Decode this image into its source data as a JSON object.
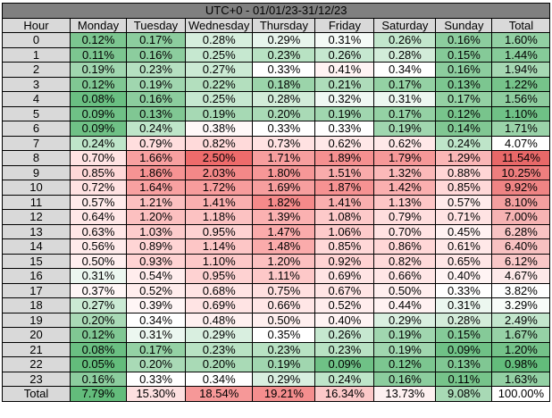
{
  "title": "UTC+0 - 01/01/23-31/12/23",
  "headers": [
    "Hour",
    "Monday",
    "Tuesday",
    "Wednesday",
    "Thursday",
    "Friday",
    "Saturday",
    "Sunday",
    "Total"
  ],
  "rows": [
    {
      "hour": "0",
      "values": [
        "0.12%",
        "0.17%",
        "0.28%",
        "0.29%",
        "0.31%",
        "0.26%",
        "0.16%",
        "1.60%"
      ],
      "colors": [
        "#7cc690",
        "#8ccd9e",
        "#d6eedd",
        "#e7f5ec",
        "#f4faf6",
        "#c2e6cc",
        "#8ccd9e",
        "#92d0a3"
      ]
    },
    {
      "hour": "1",
      "values": [
        "0.11%",
        "0.16%",
        "0.25%",
        "0.23%",
        "0.26%",
        "0.28%",
        "0.15%",
        "1.44%"
      ],
      "colors": [
        "#7cc690",
        "#8ccd9e",
        "#c6e8d0",
        "#b8e2c3",
        "#c6e8d0",
        "#d2ecd9",
        "#85ca98",
        "#86cb99"
      ]
    },
    {
      "hour": "2",
      "values": [
        "0.19%",
        "0.23%",
        "0.27%",
        "0.33%",
        "0.41%",
        "0.34%",
        "0.16%",
        "1.94%"
      ],
      "colors": [
        "#a0d6af",
        "#b5e0c1",
        "#cbead4",
        "#ffffff",
        "#fff3f3",
        "#ffffff",
        "#8ccd9e",
        "#a6d8b3"
      ]
    },
    {
      "hour": "3",
      "values": [
        "0.12%",
        "0.19%",
        "0.22%",
        "0.18%",
        "0.21%",
        "0.17%",
        "0.13%",
        "1.22%"
      ],
      "colors": [
        "#80c793",
        "#a0d6af",
        "#b3dfbe",
        "#9bd4aa",
        "#aedcba",
        "#94d1a4",
        "#7cc690",
        "#76c38a"
      ]
    },
    {
      "hour": "4",
      "values": [
        "0.08%",
        "0.16%",
        "0.25%",
        "0.28%",
        "0.32%",
        "0.31%",
        "0.17%",
        "1.56%"
      ],
      "colors": [
        "#6abf82",
        "#8ccd9e",
        "#c6e8d0",
        "#d2ecd9",
        "#f0f8f3",
        "#ecf7f0",
        "#94d1a4",
        "#8ecd9f"
      ]
    },
    {
      "hour": "5",
      "values": [
        "0.09%",
        "0.13%",
        "0.19%",
        "0.20%",
        "0.19%",
        "0.17%",
        "0.12%",
        "1.10%"
      ],
      "colors": [
        "#6fc186",
        "#80c793",
        "#a6d9b4",
        "#a9dab6",
        "#a0d6af",
        "#94d1a4",
        "#78c48c",
        "#6fc186"
      ]
    },
    {
      "hour": "6",
      "values": [
        "0.09%",
        "0.24%",
        "0.38%",
        "0.33%",
        "0.33%",
        "0.19%",
        "0.14%",
        "1.71%"
      ],
      "colors": [
        "#6fc186",
        "#bee5c9",
        "#fff8f8",
        "#ffffff",
        "#ffffff",
        "#a0d6af",
        "#80c793",
        "#9ad3a9"
      ]
    },
    {
      "hour": "7",
      "values": [
        "0.24%",
        "0.79%",
        "0.82%",
        "0.73%",
        "0.62%",
        "0.62%",
        "0.24%",
        "4.07%"
      ],
      "colors": [
        "#bee5c9",
        "#ffdede",
        "#ffdada",
        "#ffe2e2",
        "#ffe8e8",
        "#ffe8e8",
        "#bee5c9",
        "#ffffff"
      ]
    },
    {
      "hour": "8",
      "values": [
        "0.70%",
        "1.66%",
        "2.50%",
        "1.71%",
        "1.89%",
        "1.79%",
        "1.29%",
        "11.54%"
      ],
      "colors": [
        "#ffe3e3",
        "#f8a0a0",
        "#ee6b6b",
        "#f79e9e",
        "#f59090",
        "#f69898",
        "#fab6b6",
        "#e86868"
      ]
    },
    {
      "hour": "9",
      "values": [
        "0.85%",
        "1.86%",
        "2.03%",
        "1.80%",
        "1.51%",
        "1.32%",
        "0.88%",
        "10.25%"
      ],
      "colors": [
        "#ffd8d8",
        "#f69393",
        "#f48888",
        "#f69797",
        "#f9abab",
        "#fbb9b9",
        "#ffd6d6",
        "#ee7e7e"
      ]
    },
    {
      "hour": "10",
      "values": [
        "0.72%",
        "1.64%",
        "1.72%",
        "1.69%",
        "1.87%",
        "1.42%",
        "0.85%",
        "9.92%"
      ],
      "colors": [
        "#ffe2e2",
        "#f8a1a1",
        "#f79c9c",
        "#f79e9e",
        "#f69292",
        "#faafaf",
        "#ffd8d8",
        "#ef8484"
      ]
    },
    {
      "hour": "11",
      "values": [
        "0.57%",
        "1.21%",
        "1.41%",
        "1.82%",
        "1.41%",
        "1.13%",
        "0.57%",
        "8.10%"
      ],
      "colors": [
        "#ffebeb",
        "#fcc0c0",
        "#faafaf",
        "#f58a8a",
        "#faafaf",
        "#fdc6c6",
        "#ffebeb",
        "#f39f9f"
      ]
    },
    {
      "hour": "12",
      "values": [
        "0.64%",
        "1.20%",
        "1.18%",
        "1.39%",
        "1.08%",
        "0.79%",
        "0.71%",
        "7.00%"
      ],
      "colors": [
        "#ffe7e7",
        "#fcc0c0",
        "#fcc2c2",
        "#fbb1b1",
        "#fdcaca",
        "#ffdede",
        "#ffe3e3",
        "#f6b3b3"
      ]
    },
    {
      "hour": "13",
      "values": [
        "0.63%",
        "1.03%",
        "0.95%",
        "1.47%",
        "1.06%",
        "0.70%",
        "0.45%",
        "6.28%"
      ],
      "colors": [
        "#ffe7e7",
        "#fdcccc",
        "#fed2d2",
        "#faabab",
        "#fdcbcb",
        "#ffe3e3",
        "#fff2f2",
        "#f8c4c4"
      ]
    },
    {
      "hour": "14",
      "values": [
        "0.56%",
        "0.89%",
        "1.14%",
        "1.48%",
        "0.85%",
        "0.86%",
        "0.61%",
        "6.40%"
      ],
      "colors": [
        "#ffebeb",
        "#ffd5d5",
        "#fdc6c6",
        "#faabab",
        "#ffd8d8",
        "#ffd7d7",
        "#ffe8e8",
        "#f8c1c1"
      ]
    },
    {
      "hour": "15",
      "values": [
        "0.50%",
        "0.93%",
        "1.10%",
        "1.20%",
        "0.92%",
        "0.82%",
        "0.65%",
        "6.12%"
      ],
      "colors": [
        "#ffefef",
        "#ffd3d3",
        "#fdc8c8",
        "#fcc0c0",
        "#ffd3d3",
        "#ffdada",
        "#ffe6e6",
        "#f9c7c7"
      ]
    },
    {
      "hour": "16",
      "values": [
        "0.31%",
        "0.54%",
        "0.95%",
        "1.11%",
        "0.69%",
        "0.66%",
        "0.40%",
        "4.67%"
      ],
      "colors": [
        "#ecf7f0",
        "#ffeded",
        "#fed2d2",
        "#fdc8c8",
        "#ffe4e4",
        "#ffe6e6",
        "#fff4f4",
        "#fde9e9"
      ]
    },
    {
      "hour": "17",
      "values": [
        "0.37%",
        "0.52%",
        "0.68%",
        "0.75%",
        "0.67%",
        "0.50%",
        "0.33%",
        "3.82%"
      ],
      "colors": [
        "#fff6f6",
        "#ffeded",
        "#ffe4e4",
        "#ffe0e0",
        "#ffe5e5",
        "#ffefef",
        "#ffffff",
        "#fefefe"
      ]
    },
    {
      "hour": "18",
      "values": [
        "0.27%",
        "0.39%",
        "0.69%",
        "0.66%",
        "0.52%",
        "0.44%",
        "0.31%",
        "3.29%"
      ],
      "colors": [
        "#cbead4",
        "#fff6f6",
        "#ffe4e4",
        "#ffe6e6",
        "#ffeded",
        "#fff2f2",
        "#ecf7f0",
        "#f8fcf9"
      ]
    },
    {
      "hour": "19",
      "values": [
        "0.20%",
        "0.34%",
        "0.48%",
        "0.50%",
        "0.40%",
        "0.29%",
        "0.28%",
        "2.49%"
      ],
      "colors": [
        "#a9dab6",
        "#ffffff",
        "#fff0f0",
        "#ffefef",
        "#fff4f4",
        "#d9efe0",
        "#d2ecd9",
        "#c2e6cc"
      ]
    },
    {
      "hour": "20",
      "values": [
        "0.12%",
        "0.31%",
        "0.29%",
        "0.35%",
        "0.26%",
        "0.19%",
        "0.15%",
        "1.67%"
      ],
      "colors": [
        "#80c793",
        "#ecf7f0",
        "#d9efe0",
        "#ffffff",
        "#c6e8d0",
        "#a0d6af",
        "#85ca98",
        "#96d1a6"
      ]
    },
    {
      "hour": "21",
      "values": [
        "0.08%",
        "0.17%",
        "0.23%",
        "0.23%",
        "0.23%",
        "0.19%",
        "0.09%",
        "1.20%"
      ],
      "colors": [
        "#6abf82",
        "#94d1a4",
        "#b8e2c3",
        "#b8e2c3",
        "#b8e2c3",
        "#a0d6af",
        "#6fc186",
        "#74c289"
      ]
    },
    {
      "hour": "22",
      "values": [
        "0.05%",
        "0.20%",
        "0.20%",
        "0.19%",
        "0.09%",
        "0.12%",
        "0.13%",
        "0.98%"
      ],
      "colors": [
        "#63bc7b",
        "#a9dab6",
        "#a9dab6",
        "#a0d6af",
        "#6fc186",
        "#7cc690",
        "#80c793",
        "#63bc7b"
      ]
    },
    {
      "hour": "23",
      "values": [
        "0.16%",
        "0.33%",
        "0.34%",
        "0.29%",
        "0.24%",
        "0.16%",
        "0.11%",
        "1.63%"
      ],
      "colors": [
        "#8ccd9e",
        "#ffffff",
        "#ffffff",
        "#d9efe0",
        "#bee5c9",
        "#8ccd9e",
        "#76c38a",
        "#93d0a4"
      ]
    }
  ],
  "total_row": {
    "label": "Total",
    "values": [
      "7.79%",
      "15.30%",
      "18.54%",
      "19.21%",
      "16.34%",
      "13.73%",
      "9.08%",
      "100.00%"
    ],
    "colors": [
      "#63bc7b",
      "#fde0e0",
      "#f69898",
      "#f48e8e",
      "#fcc8c8",
      "#fdf0f0",
      "#a8d9b5",
      "#ffffff"
    ]
  }
}
